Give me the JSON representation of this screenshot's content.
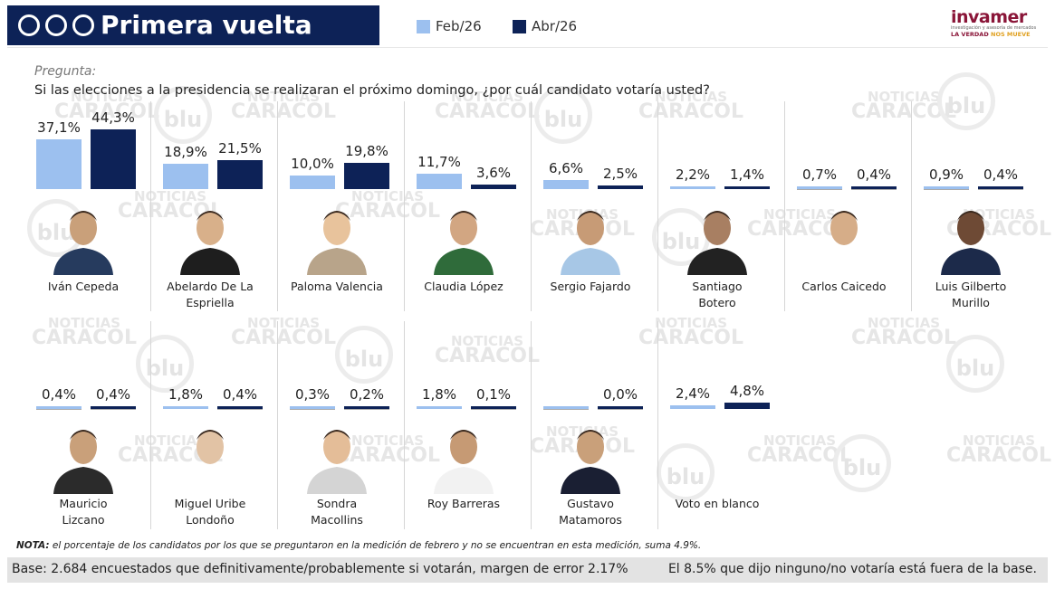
{
  "header": {
    "title": "Primera vuelta",
    "dot_colors": [
      "#f2c200",
      "#0d2257",
      "#c8102e"
    ]
  },
  "logo": {
    "name": "invamer",
    "subtitle": "investigación y asesoría de mercados",
    "tagline_1": "LA VERDAD",
    "tagline_2": "NOS MUEVE"
  },
  "question": {
    "label": "Pregunta:",
    "text": "Si las elecciones a la presidencia se realizaran el próximo domingo, ¿por cuál candidato votaría usted?"
  },
  "watermark": {
    "line1": "NOTICIAS",
    "line2": "CARACOL",
    "radio": "blu"
  },
  "chart_data": {
    "type": "bar",
    "series": [
      {
        "name": "Feb/26",
        "color": "#9cc0ef",
        "values": [
          37.1,
          18.9,
          10.0,
          11.7,
          6.6,
          2.2,
          0.7,
          0.9,
          0.4,
          1.8,
          0.3,
          1.8,
          0.0,
          2.4
        ]
      },
      {
        "name": "Abr/26",
        "color": "#0d2257",
        "values": [
          44.3,
          21.5,
          19.8,
          3.6,
          2.5,
          1.4,
          0.4,
          0.4,
          0.4,
          0.4,
          0.2,
          0.1,
          0.0,
          4.8
        ]
      }
    ],
    "labels": [
      [
        "37,1%",
        "44,3%"
      ],
      [
        "18,9%",
        "21,5%"
      ],
      [
        "10,0%",
        "19,8%"
      ],
      [
        "11,7%",
        "3,6%"
      ],
      [
        "6,6%",
        "2,5%"
      ],
      [
        "2,2%",
        "1,4%"
      ],
      [
        "0,7%",
        "0,4%"
      ],
      [
        "0,9%",
        "0,4%"
      ],
      [
        "0,4%",
        "0,4%"
      ],
      [
        "1,8%",
        "0,4%"
      ],
      [
        "0,3%",
        "0,2%"
      ],
      [
        "1,8%",
        "0,1%"
      ],
      [
        "",
        "0,0%"
      ],
      [
        "2,4%",
        "4,8%"
      ]
    ],
    "categories": [
      [
        "Iván Cepeda"
      ],
      [
        "Abelardo De La",
        "Espriella"
      ],
      [
        "Paloma Valencia"
      ],
      [
        "Claudia López"
      ],
      [
        "Sergio Fajardo"
      ],
      [
        "Santiago",
        "Botero"
      ],
      [
        "Carlos Caicedo"
      ],
      [
        "Luis Gilberto",
        "Murillo"
      ],
      [
        "Mauricio",
        "Lizcano"
      ],
      [
        "Miguel Uribe",
        "Londoño"
      ],
      [
        "Sondra",
        "Macollins"
      ],
      [
        "Roy Barreras"
      ],
      [
        "Gustavo",
        "Matamoros"
      ],
      [
        "Voto en blanco"
      ]
    ]
  },
  "note": {
    "label": "NOTA:",
    "text": " el porcentaje de los candidatos por los que se preguntaron en la medición de febrero y no se encuentran en esta medición, suma 4.9%."
  },
  "footer": {
    "left": "Base: 2.684 encuestados que definitivamente/probablemente si votarán, margen de error 2.17%",
    "right": "El 8.5% que dijo ninguno/no votaría está fuera de la base."
  }
}
